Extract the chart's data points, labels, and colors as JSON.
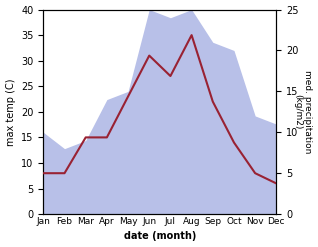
{
  "months": [
    "Jan",
    "Feb",
    "Mar",
    "Apr",
    "May",
    "Jun",
    "Jul",
    "Aug",
    "Sep",
    "Oct",
    "Nov",
    "Dec"
  ],
  "temp": [
    8,
    8,
    15,
    15,
    23,
    31,
    27,
    35,
    22,
    14,
    8,
    6
  ],
  "precip": [
    10,
    8,
    9,
    14,
    15,
    25,
    24,
    25,
    21,
    20,
    12,
    11
  ],
  "temp_color": "#992233",
  "precip_fill_color": "#b8c0e8",
  "ylabel_left": "max temp (C)",
  "ylabel_right": "med. precipitation\n(kg/m2)",
  "xlabel": "date (month)",
  "ylim_left": [
    0,
    40
  ],
  "ylim_right": [
    0,
    25
  ],
  "background_color": "#ffffff"
}
